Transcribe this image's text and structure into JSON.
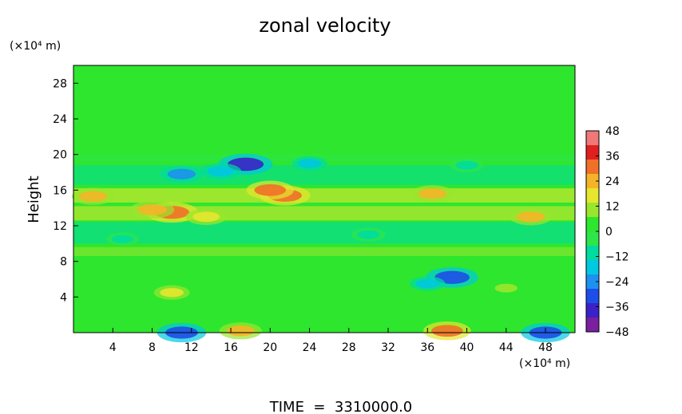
{
  "chart_data": {
    "type": "heatmap",
    "title": "zonal velocity",
    "ylabel": "Height",
    "x_unit_label": "(×10⁴ m)",
    "y_unit_label": "(×10⁴ m)",
    "footer": "TIME  =  3310000.0",
    "xlim": [
      0,
      51
    ],
    "ylim": [
      0,
      30
    ],
    "x_ticks": [
      4,
      8,
      12,
      16,
      20,
      24,
      28,
      32,
      36,
      40,
      44,
      48
    ],
    "y_ticks": [
      4,
      8,
      12,
      16,
      20,
      24,
      28
    ],
    "colorbar": {
      "min": -48,
      "max": 48,
      "ticks": [
        48,
        36,
        24,
        12,
        0,
        -12,
        -24,
        -36,
        -48
      ],
      "colors": [
        "#7a1fa0",
        "#3a22c8",
        "#1e4ee8",
        "#1e90f0",
        "#00c8e0",
        "#00dca0",
        "#2ee64a",
        "#2ee62e",
        "#9ae62e",
        "#e6e62e",
        "#f5b428",
        "#f07028",
        "#e02020",
        "#f07878"
      ]
    },
    "background_value": 2,
    "features": [
      {
        "x": 17.5,
        "y": 18.9,
        "value": -36
      },
      {
        "x": 15.0,
        "y": 18.1,
        "value": -20
      },
      {
        "x": 11.0,
        "y": 17.8,
        "value": -22
      },
      {
        "x": 24.0,
        "y": 19.0,
        "value": -14
      },
      {
        "x": 38.5,
        "y": 6.2,
        "value": -34
      },
      {
        "x": 36.0,
        "y": 5.5,
        "value": -14
      },
      {
        "x": 10.0,
        "y": 13.5,
        "value": 34
      },
      {
        "x": 8.0,
        "y": 13.8,
        "value": 24
      },
      {
        "x": 13.5,
        "y": 13.0,
        "value": 20
      },
      {
        "x": 21.5,
        "y": 15.4,
        "value": 32
      },
      {
        "x": 20.0,
        "y": 16.0,
        "value": 28
      },
      {
        "x": 2.0,
        "y": 15.3,
        "value": 22
      },
      {
        "x": 36.5,
        "y": 15.6,
        "value": 22
      },
      {
        "x": 46.5,
        "y": 13.0,
        "value": 22
      },
      {
        "x": 10.0,
        "y": 4.5,
        "value": 14
      },
      {
        "x": 44.0,
        "y": 5.0,
        "value": 12
      },
      {
        "x": 11.0,
        "y": 0.0,
        "value": -30
      },
      {
        "x": 48.0,
        "y": 0.0,
        "value": -30
      },
      {
        "x": 38.0,
        "y": 0.2,
        "value": 28
      },
      {
        "x": 17.0,
        "y": 0.2,
        "value": 22
      },
      {
        "x": 30.0,
        "y": 11.0,
        "value": -12
      },
      {
        "x": 5.0,
        "y": 10.5,
        "value": -10
      },
      {
        "x": 40.0,
        "y": 18.8,
        "value": -12
      }
    ]
  }
}
